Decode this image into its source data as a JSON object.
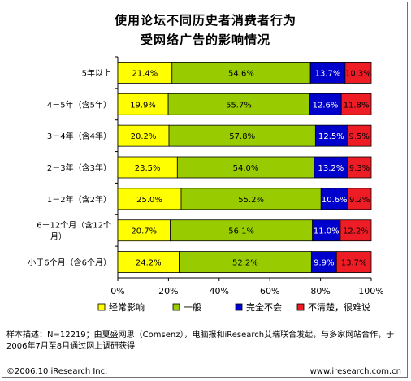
{
  "page": {
    "title_line1": "使用论坛不同历史者消费者行为",
    "title_line2": "受网络广告的影响情况",
    "footnote": "样本描述：N=12219；由夏盛网思（Comsenz），电脑报和iResearch艾瑞联合发起，与多家网站合作，于2006年7月至8月通过网上调研获得",
    "copyright": "©2006.10 iResearch Inc.",
    "website": "www.iresearch.com.cn"
  },
  "chart_data": {
    "type": "bar",
    "orientation": "horizontal",
    "stacked": true,
    "percent_stacked": true,
    "title": "使用论坛不同历史者消费者行为 受网络广告的影响情况",
    "categories": [
      "5年以上",
      "4－5年（含5年）",
      "3－4年（含4年）",
      "2－3年（含3年）",
      "1－2年（含2年）",
      "6－12个月（含12个月）",
      "小于6个月（含6个月）"
    ],
    "category_lines": [
      [
        "5年以上"
      ],
      [
        "4－5年（含5年）"
      ],
      [
        "3－4年（含4年）"
      ],
      [
        "2－3年（含3年）"
      ],
      [
        "1－2年（含2年）"
      ],
      [
        "6－12个月（含12个",
        "月）"
      ],
      [
        "小于6个月（含6个月）"
      ]
    ],
    "series": [
      {
        "name": "经常影响",
        "color": "#ffff00",
        "label_color": "#000000",
        "values": [
          21.4,
          19.9,
          20.2,
          23.5,
          25.0,
          20.7,
          24.2
        ]
      },
      {
        "name": "一般",
        "color": "#99cc00",
        "label_color": "#000000",
        "values": [
          54.6,
          55.7,
          57.8,
          54.0,
          55.2,
          56.1,
          52.2
        ]
      },
      {
        "name": "完全不会",
        "color": "#0000cc",
        "label_color": "#ffffff",
        "values": [
          13.7,
          12.6,
          12.5,
          13.2,
          10.6,
          11.0,
          9.9
        ]
      },
      {
        "name": "不清楚，很难说",
        "color": "#ee1c25",
        "label_color": "#000000",
        "values": [
          10.3,
          11.8,
          9.5,
          9.3,
          9.2,
          12.2,
          13.7
        ]
      }
    ],
    "xlim": [
      0,
      100
    ],
    "x_ticks": [
      "0%",
      "20%",
      "40%",
      "60%",
      "80%",
      "100%"
    ],
    "legend_position": "bottom",
    "grid": false
  }
}
